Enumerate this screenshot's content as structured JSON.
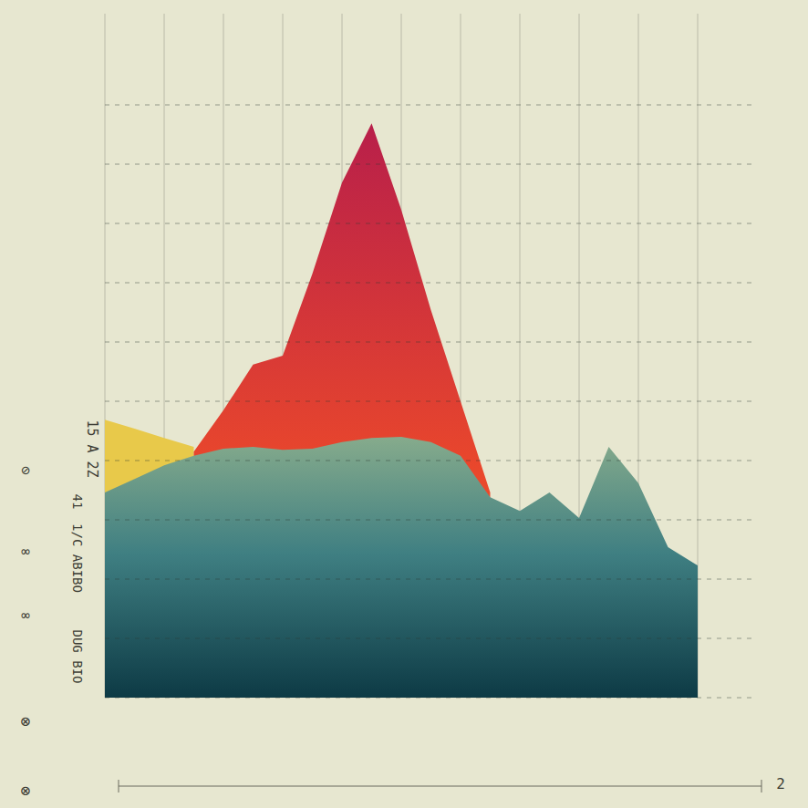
{
  "chart_data": {
    "type": "area",
    "annotations": [
      "15 A 2Z",
      "41",
      "1/C ABIBO",
      "DUG BIO",
      "⊘",
      "∞",
      "∞",
      "⊗",
      "⊗",
      "2"
    ],
    "x": [
      0,
      5,
      10,
      15,
      20,
      25,
      30,
      35,
      40,
      45,
      50,
      55,
      60,
      65,
      70,
      75,
      80,
      85,
      90,
      95,
      100
    ],
    "series": [
      {
        "color": "#e8c94a",
        "values": [
          46.9,
          45.4,
          43.8,
          42.3,
          null,
          null,
          null,
          null,
          null,
          null,
          null,
          null,
          null,
          null,
          null,
          null,
          null,
          null,
          null,
          null,
          null
        ]
      },
      {
        "color": "#e9472c",
        "values": [
          null,
          null,
          null,
          41.5,
          48.5,
          56.2,
          57.7,
          71.5,
          86.9,
          96.9,
          82.3,
          65.4,
          50,
          34.6,
          null,
          null,
          null,
          null,
          null,
          null,
          null
        ]
      },
      {
        "color": "#86ab8c",
        "values": [
          34.6,
          36.9,
          39.2,
          40.8,
          42,
          42.3,
          41.8,
          42,
          43.1,
          43.8,
          44,
          43.1,
          40.8,
          33.8,
          31.5,
          34.6,
          30.3,
          42.3,
          36.2,
          25.4,
          22.3
        ]
      }
    ],
    "xlim": [
      0,
      100
    ],
    "ylim": [
      0,
      100
    ],
    "xticks": [
      0,
      10,
      20,
      30,
      40,
      50,
      60,
      70,
      80,
      90,
      100
    ],
    "yticks": [
      0,
      10,
      20,
      30,
      40,
      50,
      60,
      70,
      80,
      90,
      100
    ],
    "grid": true,
    "tick_labels": false
  }
}
